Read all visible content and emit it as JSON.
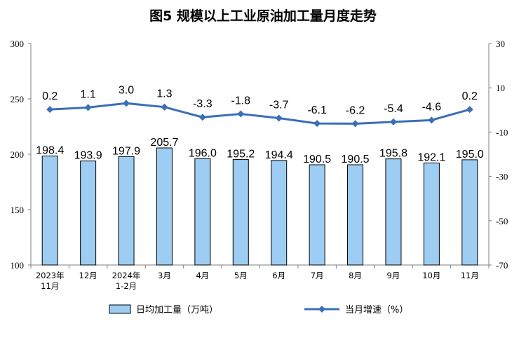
{
  "chart_data": {
    "type": "bar",
    "title": "图5  规模以上工业原油加工量月度走势",
    "categories": [
      [
        "2023年",
        "11月"
      ],
      [
        "12月"
      ],
      [
        "2024年",
        "1-2月"
      ],
      [
        "3月"
      ],
      [
        "4月"
      ],
      [
        "5月"
      ],
      [
        "6月"
      ],
      [
        "7月"
      ],
      [
        "8月"
      ],
      [
        "9月"
      ],
      [
        "10月"
      ],
      [
        "11月"
      ]
    ],
    "series": [
      {
        "name": "日均加工量（万吨）",
        "type": "bar",
        "axis": "left",
        "color": "#9dcdf2",
        "values": [
          198.4,
          193.9,
          197.9,
          205.7,
          196.0,
          195.2,
          194.4,
          190.5,
          190.5,
          195.8,
          192.1,
          195.0
        ],
        "labels": [
          "198.4",
          "193.9",
          "197.9",
          "205.7",
          "196.0",
          "195.2",
          "194.4",
          "190.5",
          "190.5",
          "195.8",
          "192.1",
          "195.0"
        ]
      },
      {
        "name": "当月增速（%）",
        "type": "line",
        "axis": "right",
        "color": "#3b6fb6",
        "values": [
          0.2,
          1.1,
          3.0,
          1.3,
          -3.3,
          -1.8,
          -3.7,
          -6.1,
          -6.2,
          -5.4,
          -4.6,
          0.2
        ],
        "labels": [
          "0.2",
          "1.1",
          "3.0",
          "1.3",
          "-3.3",
          "-1.8",
          "-3.7",
          "-6.1",
          "-6.2",
          "-5.4",
          "-4.6",
          "0.2"
        ]
      }
    ],
    "y_left": {
      "min": 100,
      "max": 300,
      "ticks": [
        100,
        150,
        200,
        250,
        300
      ]
    },
    "y_right": {
      "min": -70,
      "max": 30,
      "ticks": [
        -70,
        -50,
        -30,
        -10,
        10,
        30
      ]
    },
    "grid": false,
    "legend_position": "bottom"
  }
}
